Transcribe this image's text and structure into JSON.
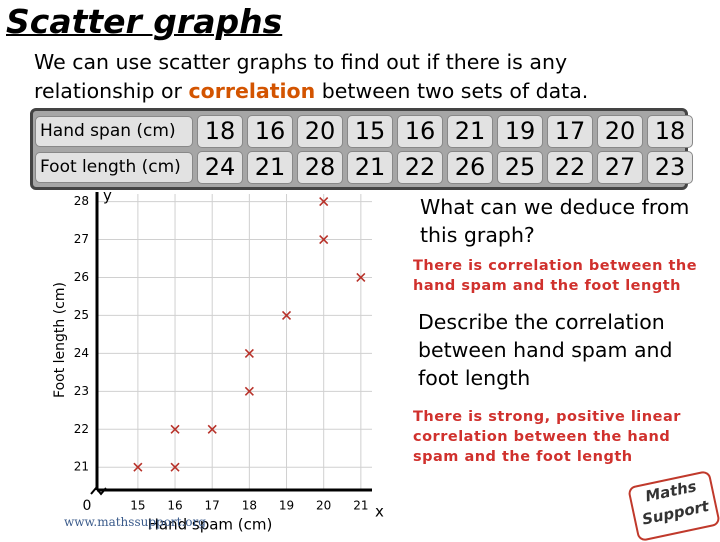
{
  "header": {
    "title": "Scatter graphs"
  },
  "intro": {
    "before": "We can use scatter graphs to find out if there is any relationship or",
    "highlight": "correlation",
    "after": "between two sets of data."
  },
  "table": {
    "row_labels": [
      "Hand span (cm)",
      "Foot length (cm)"
    ]
  },
  "questions": [
    {
      "question": "What can we deduce from this graph?",
      "answer": "There is correlation between the hand spam and the foot length"
    },
    {
      "question": "Describe the correlation between hand spam and foot length",
      "answer": "There is strong, positive linear correlation between the hand spam and the foot length"
    }
  ],
  "footer": {
    "url": "www.mathssupport.org",
    "logo": [
      "Maths",
      "Support"
    ]
  },
  "chart_data": {
    "type": "scatter",
    "x_label": "Hand spam (cm)",
    "y_label": "Foot length (cm)",
    "x_axis_letter": "x",
    "y_axis_letter": "y",
    "origin_label": "0",
    "x": [
      18,
      16,
      20,
      15,
      16,
      21,
      19,
      17,
      20,
      18
    ],
    "y": [
      24,
      21,
      28,
      21,
      22,
      26,
      25,
      22,
      27,
      23
    ],
    "color": "#b8322a",
    "xlim": [
      13.9,
      21.3
    ],
    "ylim": [
      20.4,
      28.2
    ],
    "xticks": [
      15,
      16,
      17,
      18,
      19,
      20,
      21
    ],
    "yticks": [
      21,
      22,
      23,
      24,
      25,
      26,
      27,
      28
    ],
    "grid": true
  }
}
